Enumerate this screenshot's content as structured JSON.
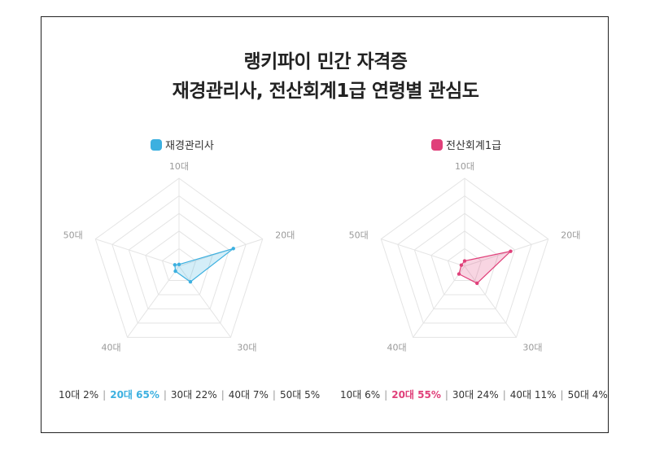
{
  "title_line1": "랭키파이 민간 자격증",
  "title_line2": "재경관리사, 전산회계1급 연령별 관심도",
  "chart_data": [
    {
      "type": "radar",
      "series_name": "재경관리사",
      "color": "#3cb0e0",
      "categories": [
        "10대",
        "20대",
        "30대",
        "40대",
        "50대"
      ],
      "values": [
        2,
        65,
        22,
        7,
        5
      ],
      "summary": [
        {
          "text": "10대 2%",
          "highlight": false
        },
        {
          "text": "20대 65%",
          "highlight": true
        },
        {
          "text": "30대 22%",
          "highlight": false
        },
        {
          "text": "40대 7%",
          "highlight": false
        },
        {
          "text": "50대 5%",
          "highlight": false
        }
      ]
    },
    {
      "type": "radar",
      "series_name": "전산회계1급",
      "color": "#e0407a",
      "categories": [
        "10대",
        "20대",
        "30대",
        "40대",
        "50대"
      ],
      "values": [
        6,
        55,
        24,
        11,
        4
      ],
      "summary": [
        {
          "text": "10대 6%",
          "highlight": false
        },
        {
          "text": "20대 55%",
          "highlight": true
        },
        {
          "text": "30대 24%",
          "highlight": false
        },
        {
          "text": "40대 11%",
          "highlight": false
        },
        {
          "text": "50대 4%",
          "highlight": false
        }
      ]
    }
  ],
  "radar_max": 100,
  "grid_levels": 5
}
